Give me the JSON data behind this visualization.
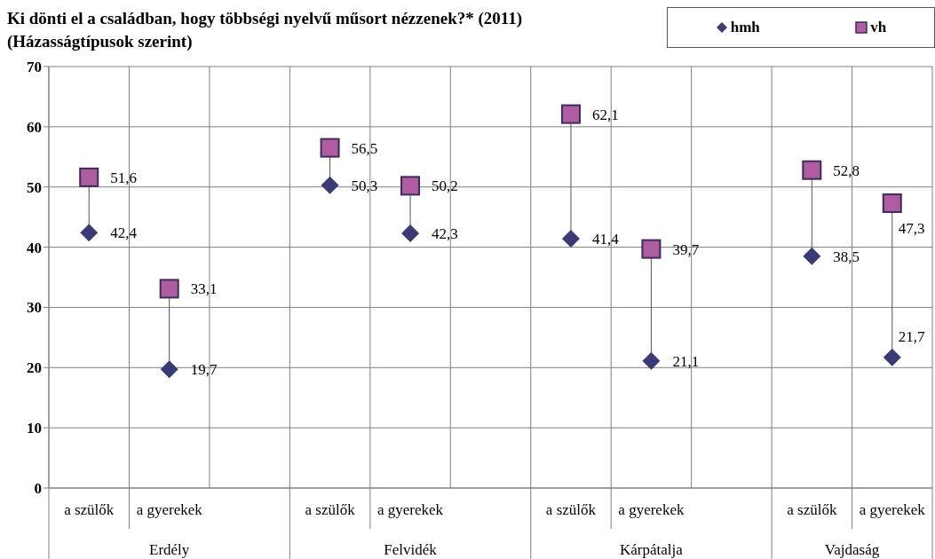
{
  "chart_data": {
    "type": "scatter",
    "title": "Ki dönti el a családban, hogy többségi nyelvű műsort nézzenek?* (2011)",
    "subtitle": "(Házasságtípusok szerint)",
    "categories": [
      "a szülők",
      "a gyerekek",
      null,
      "a szülők",
      "a gyerekek",
      null,
      "a szülők",
      "a gyerekek",
      null,
      "a szülők",
      "a gyerekek"
    ],
    "series": [
      {
        "name": "hmh",
        "color": "#3b3a78",
        "marker": "diamond",
        "values": [
          42.4,
          19.7,
          null,
          50.3,
          42.3,
          null,
          41.4,
          21.1,
          null,
          38.5,
          21.7
        ],
        "value_labels": [
          "42,4",
          "19,7",
          null,
          "50,3",
          "42,3",
          null,
          "41,4",
          "21,1",
          null,
          "38,5",
          "21,7"
        ]
      },
      {
        "name": "vh",
        "color": "#b05ca0",
        "marker": "square",
        "values": [
          51.6,
          33.1,
          null,
          56.5,
          50.2,
          null,
          62.1,
          39.7,
          null,
          52.8,
          47.3
        ],
        "value_labels": [
          "51,6",
          "33,1",
          null,
          "56,5",
          "50,2",
          null,
          "62,1",
          "39,7",
          null,
          "52,8",
          "47,3"
        ]
      }
    ],
    "annotations": [
      "Erdély",
      "Felvidék",
      "Kárpátalja",
      "Vajdaság"
    ],
    "ylim": [
      0,
      70
    ],
    "yticks": [
      0,
      10,
      20,
      30,
      40,
      50,
      60,
      70
    ],
    "grid": true,
    "legend": "top right"
  }
}
